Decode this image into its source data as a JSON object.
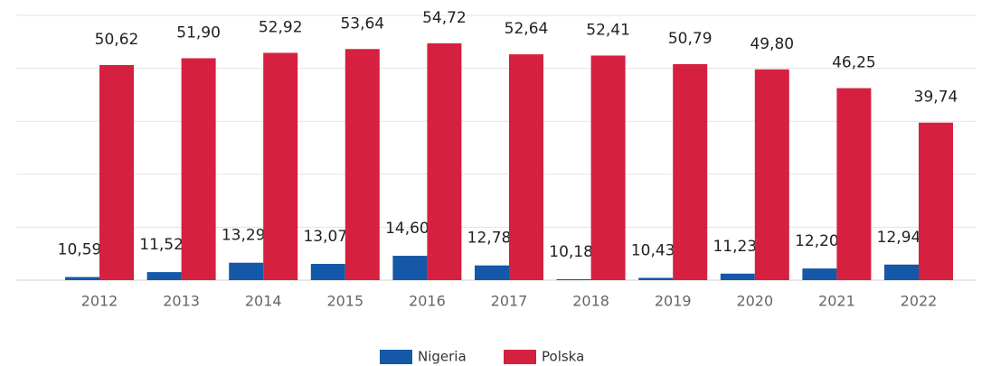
{
  "chart_data": {
    "type": "bar",
    "categories": [
      "2012",
      "2013",
      "2014",
      "2015",
      "2016",
      "2017",
      "2018",
      "2019",
      "2020",
      "2021",
      "2022"
    ],
    "series": [
      {
        "name": "Nigeria",
        "color": "#1558a8",
        "values": [
          10.59,
          11.52,
          13.29,
          13.07,
          14.6,
          12.78,
          10.18,
          10.43,
          11.23,
          12.2,
          12.94
        ],
        "value_labels": [
          "10,59",
          "11,52",
          "13,29",
          "13,07",
          "14,60",
          "12,78",
          "10,18",
          "10,43",
          "11,23",
          "12,20",
          "12,94"
        ]
      },
      {
        "name": "Polska",
        "color": "#d5203f",
        "values": [
          50.62,
          51.9,
          52.92,
          53.64,
          54.72,
          52.64,
          52.41,
          50.79,
          49.8,
          46.25,
          39.74
        ],
        "value_labels": [
          "50,62",
          "51,90",
          "52,92",
          "53,64",
          "54,72",
          "52,64",
          "52,41",
          "50,79",
          "49,80",
          "46,25",
          "39,74"
        ]
      }
    ],
    "ylim": [
      10,
      60
    ],
    "yticks": [
      10,
      20,
      30,
      40,
      50,
      60
    ],
    "grid": true,
    "legend": "bottom"
  }
}
